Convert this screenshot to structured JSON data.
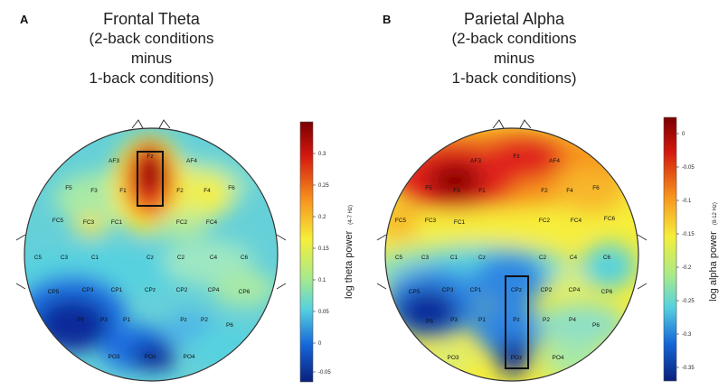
{
  "panels": [
    {
      "letter": "A",
      "title_lines": [
        "Frontal Theta",
        "(2-back conditions",
        "minus",
        "1-back conditions)"
      ],
      "colorbar": {
        "label": "log theta power",
        "unit": "(4-7 Hz)",
        "ticks": [
          "0.3",
          "0.25",
          "0.2",
          "0.15",
          "0.1",
          "0.05",
          "0",
          "-0.05"
        ],
        "range": [
          -0.08,
          0.33
        ]
      },
      "electrodes": [
        "AF3",
        "Fz",
        "AF4",
        "F5",
        "F3",
        "F1",
        "F2",
        "F4",
        "F6",
        "FC5",
        "FC3",
        "FC1",
        "FC2",
        "FC4",
        "C5",
        "C3",
        "C1",
        "Cz",
        "C2",
        "C4",
        "C6",
        "CP5",
        "CP3",
        "CP1",
        "CPz",
        "CP2",
        "CP4",
        "CP6",
        "P5",
        "P3",
        "P1",
        "Pz",
        "P2",
        "P4",
        "P6",
        "PO3",
        "POz",
        "PO4"
      ],
      "highlight_box_electrodes": [
        "Fz",
        "Fz"
      ]
    },
    {
      "letter": "B",
      "title_lines": [
        "Parietal Alpha",
        "(2-back conditions",
        "minus",
        "1-back conditions)"
      ],
      "colorbar": {
        "label": "log alpha power",
        "unit": "(8-12 Hz)",
        "ticks": [
          "0",
          "-0.05",
          "-0.1",
          "-0.15",
          "-0.2",
          "-0.25",
          "-0.3",
          "-0.35"
        ],
        "range": [
          -0.37,
          0.02
        ]
      },
      "electrodes": [
        "AF3",
        "Fz",
        "AF4",
        "F5",
        "F3",
        "F1",
        "F2",
        "F4",
        "F6",
        "FC5",
        "FC3",
        "FC1",
        "FC2",
        "FC4",
        "FC6",
        "C5",
        "C3",
        "C1",
        "Cz",
        "C2",
        "C4",
        "C6",
        "CP5",
        "CP3",
        "CP1",
        "CPz",
        "CP2",
        "CP4",
        "CP6",
        "P5",
        "P3",
        "P1",
        "Pz",
        "P2",
        "P4",
        "P6",
        "PO3",
        "POz",
        "PO4"
      ],
      "highlight_box_electrodes": [
        "CPz",
        "POz"
      ]
    }
  ],
  "colors": {
    "dark_red": "#7a0000",
    "red": "#e0221a",
    "orange": "#f7931e",
    "yellow": "#f6ee3a",
    "cyan": "#57d1df",
    "blue": "#1565d8",
    "dark_blue": "#0a1f7a",
    "box": "#111111"
  }
}
